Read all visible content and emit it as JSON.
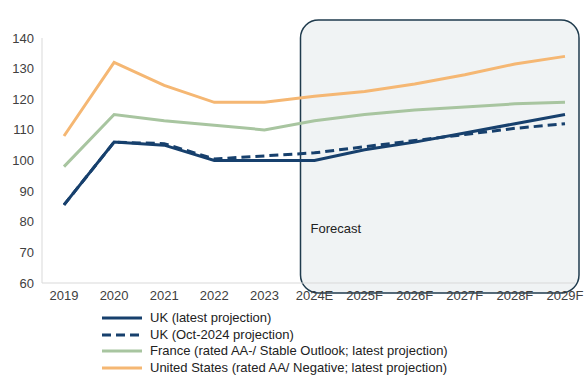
{
  "chart_data": {
    "type": "line",
    "categories": [
      "2019",
      "2020",
      "2021",
      "2022",
      "2023",
      "2024E",
      "2025F",
      "2026F",
      "2027F",
      "2028F",
      "2029F"
    ],
    "series": [
      {
        "name": "UK (latest projection)",
        "color": "#17406d",
        "line_style": "solid",
        "values": [
          85.5,
          106,
          105,
          100,
          100,
          100,
          103.5,
          106,
          109,
          112,
          115
        ]
      },
      {
        "name": "UK (Oct-2024 projection)",
        "color": "#17406d",
        "line_style": "dashed",
        "values": [
          85.5,
          106,
          105.5,
          100.5,
          101.5,
          102.5,
          104.5,
          106.5,
          108.5,
          110.5,
          112
        ]
      },
      {
        "name": "France (rated AA-/ Stable Outlook; latest projection)",
        "color": "#a8c5a0",
        "line_style": "solid",
        "values": [
          98,
          115,
          113,
          111.5,
          110,
          113,
          115,
          116.5,
          117.5,
          118.5,
          119
        ]
      },
      {
        "name": "United States (rated AA/ Negative; latest projection)",
        "color": "#f5b773",
        "line_style": "solid",
        "values": [
          108,
          132,
          124.5,
          119,
          119,
          121,
          122.5,
          125,
          128,
          131.5,
          134
        ]
      }
    ],
    "ylim": [
      60,
      140
    ],
    "yticks": [
      60,
      70,
      80,
      90,
      100,
      110,
      120,
      130,
      140
    ],
    "grid": false,
    "legend": "bottom",
    "forecast": {
      "label": "Forecast",
      "from": "2024E",
      "to": "2029F"
    }
  }
}
